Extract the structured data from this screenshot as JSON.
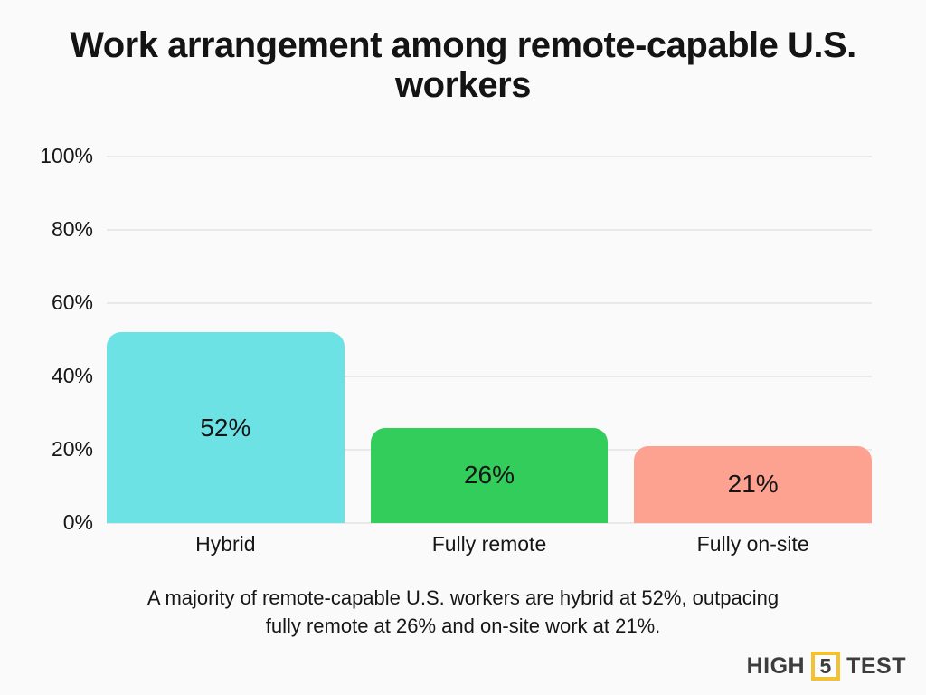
{
  "title": {
    "lines": [
      "Work arrangement among remote-capable U.S.",
      "workers"
    ]
  },
  "chart_data": {
    "type": "bar",
    "title": "Work arrangement among remote-capable U.S. workers",
    "categories": [
      "Hybrid",
      "Fully remote",
      "Fully on-site"
    ],
    "values": [
      52,
      26,
      21
    ],
    "value_labels": [
      "52%",
      "26%",
      "21%"
    ],
    "bar_colors": [
      "#6de2e4",
      "#32cd5a",
      "#fda191"
    ],
    "xlabel": "",
    "ylabel": "",
    "ylim": [
      0,
      100
    ],
    "yticks": [
      0,
      20,
      40,
      60,
      80,
      100
    ],
    "ytick_labels": [
      "0%",
      "20%",
      "40%",
      "60%",
      "80%",
      "100%"
    ],
    "grid": "horizontal",
    "legend": "none",
    "background": "#fafafa",
    "gridline_color": "#e9e9e9"
  },
  "caption": {
    "text": "A majority of remote-capable U.S. workers are hybrid at 52%, outpacing fully remote at 26% and on-site work at 21%.",
    "lines": [
      "A majority of remote-capable U.S. workers are hybrid at 52%, outpacing",
      "fully remote at 26% and on-site work at 21%."
    ]
  },
  "logo": {
    "part1": "HIGH",
    "boxed": "5",
    "part2": "TEST",
    "accent_color": "#f2c232"
  }
}
